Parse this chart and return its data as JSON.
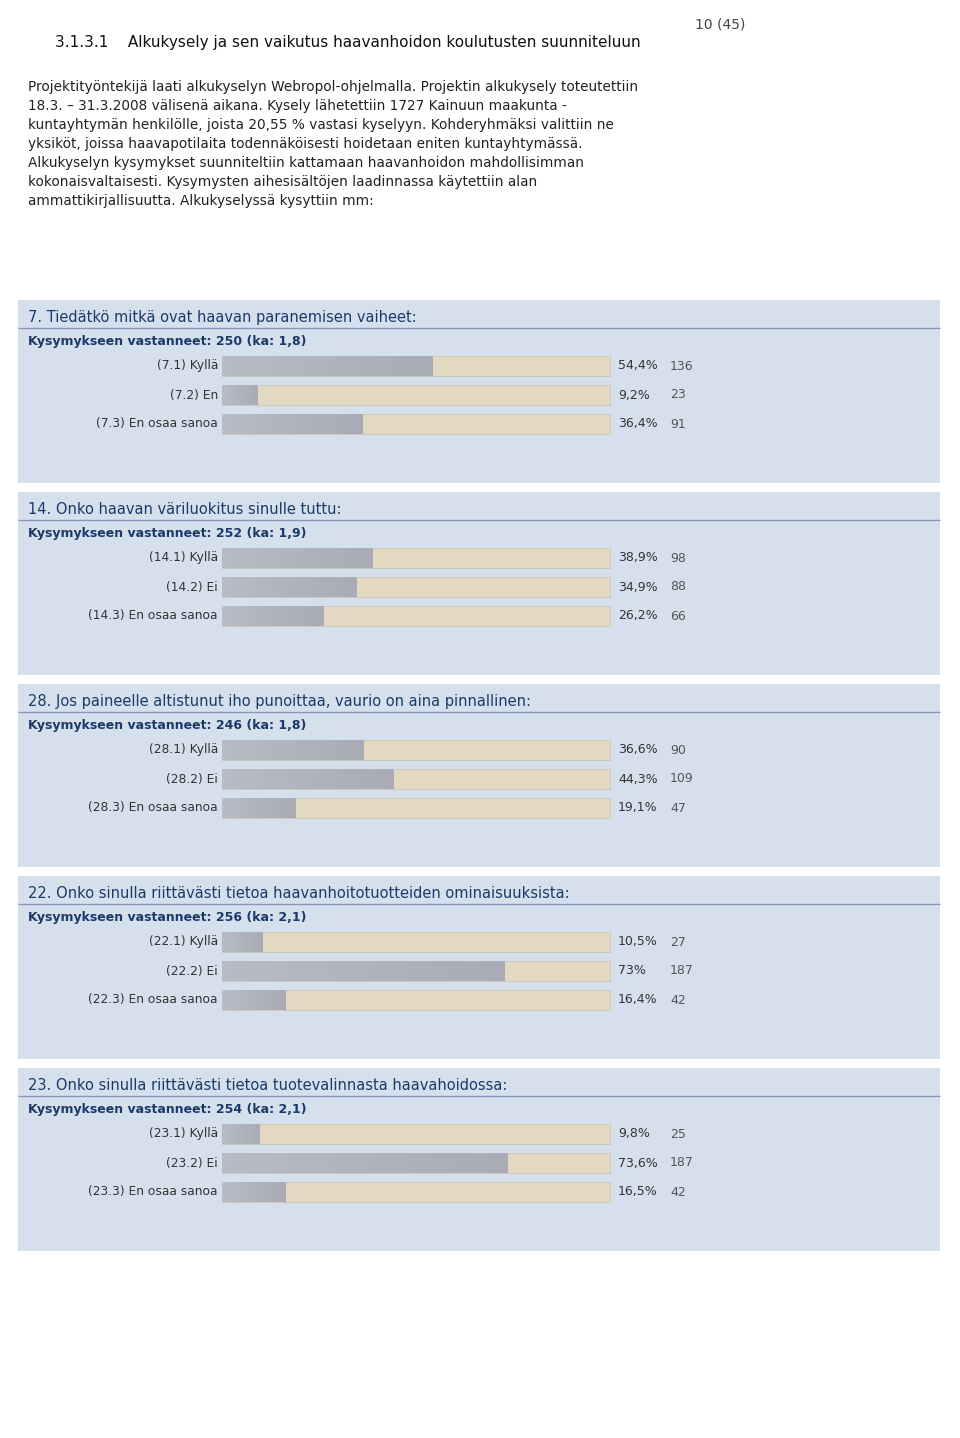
{
  "page_number": "10 (45)",
  "section_title": "3.1.3.1    Alkukysely ja sen vaikutus haavanhoidon koulutusten suunniteluun",
  "intro_lines": [
    "Projektityöntekijä laati alkukyselyn Webropol-ohjelmalla. Projektin alkukysely toteutettiin",
    "18.3. – 31.3.2008 välisenä aikana. Kysely lähetettiin 1727 Kainuun maakunta -",
    "kuntayhtymän henkilölle, joista 20,55 % vastasi kyselyyn. Kohderyhmäksi valittiin ne",
    "yksiköt, joissa haavapotilaita todennäköisesti hoidetaan eniten kuntayhtymässä.",
    "Alkukyselyn kysymykset suunniteltiin kattamaan haavanhoidon mahdollisimman",
    "kokonaisvaltaisesti. Kysymysten aihesisältöjen laadinnassa käytettiin alan",
    "ammattikirjallisuutta. Alkukyselyssä kysyttiin mm:"
  ],
  "questions": [
    {
      "title": "7. Tiedätkö mitkä ovat haavan paranemisen vaiheet:",
      "respondents": "Kysymykseen vastanneet: 250 (ka: 1,8)",
      "options": [
        {
          "label": "(7.1) Kyllä",
          "pct": 54.4,
          "pct_str": "54,4%",
          "count": "136"
        },
        {
          "label": "(7.2) En",
          "pct": 9.2,
          "pct_str": "9,2%",
          "count": "23"
        },
        {
          "label": "(7.3) En osaa sanoa",
          "pct": 36.4,
          "pct_str": "36,4%",
          "count": "91"
        }
      ]
    },
    {
      "title": "14. Onko haavan väriluokitus sinulle tuttu:",
      "respondents": "Kysymykseen vastanneet: 252 (ka: 1,9)",
      "options": [
        {
          "label": "(14.1) Kyllä",
          "pct": 38.9,
          "pct_str": "38,9%",
          "count": "98"
        },
        {
          "label": "(14.2) Ei",
          "pct": 34.9,
          "pct_str": "34,9%",
          "count": "88"
        },
        {
          "label": "(14.3) En osaa sanoa",
          "pct": 26.2,
          "pct_str": "26,2%",
          "count": "66"
        }
      ]
    },
    {
      "title": "28. Jos paineelle altistunut iho punoittaa, vaurio on aina pinnallinen:",
      "respondents": "Kysymykseen vastanneet: 246 (ka: 1,8)",
      "options": [
        {
          "label": "(28.1) Kyllä",
          "pct": 36.6,
          "pct_str": "36,6%",
          "count": "90"
        },
        {
          "label": "(28.2) Ei",
          "pct": 44.3,
          "pct_str": "44,3%",
          "count": "109"
        },
        {
          "label": "(28.3) En osaa sanoa",
          "pct": 19.1,
          "pct_str": "19,1%",
          "count": "47"
        }
      ]
    },
    {
      "title": "22. Onko sinulla riittävästi tietoa haavanhoitotuotteiden ominaisuuksista:",
      "respondents": "Kysymykseen vastanneet: 256 (ka: 2,1)",
      "options": [
        {
          "label": "(22.1) Kyllä",
          "pct": 10.5,
          "pct_str": "10,5%",
          "count": "27"
        },
        {
          "label": "(22.2) Ei",
          "pct": 73.0,
          "pct_str": "73%",
          "count": "187"
        },
        {
          "label": "(22.3) En osaa sanoa",
          "pct": 16.4,
          "pct_str": "16,4%",
          "count": "42"
        }
      ]
    },
    {
      "title": "23. Onko sinulla riittävästi tietoa tuotevalinnasta haavahoidossa:",
      "respondents": "Kysymykseen vastanneet: 254 (ka: 2,1)",
      "options": [
        {
          "label": "(23.1) Kyllä",
          "pct": 9.8,
          "pct_str": "9,8%",
          "count": "25"
        },
        {
          "label": "(23.2) Ei",
          "pct": 73.6,
          "pct_str": "73,6%",
          "count": "187"
        },
        {
          "label": "(23.3) En osaa sanoa",
          "pct": 16.5,
          "pct_str": "16,5%",
          "count": "42"
        }
      ]
    }
  ],
  "bg_section": "#d6e0ec",
  "bar_tan": "#e2d9c0",
  "page_bg": "#ffffff",
  "title_color": "#1a3a6a",
  "sep_color": "#8899bb",
  "text_dark": "#222222",
  "respondents_color": "#1a3a6a",
  "label_color": "#333333",
  "pct_color": "#333333",
  "count_color": "#555555"
}
